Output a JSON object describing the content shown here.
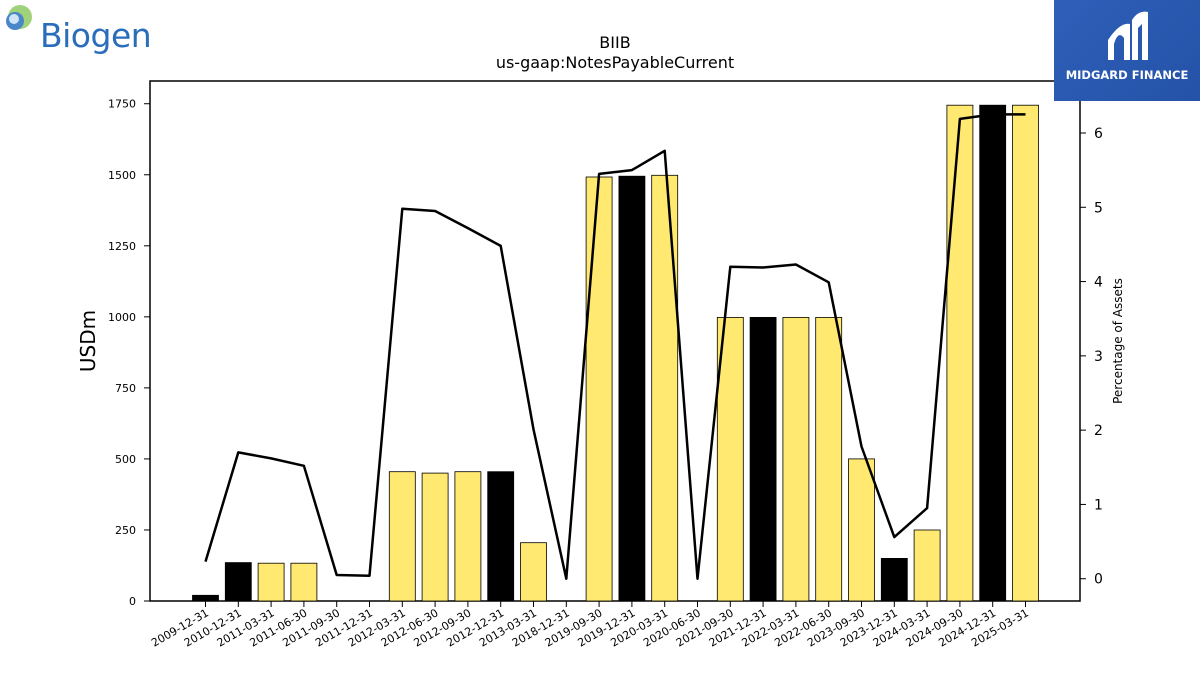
{
  "brand": {
    "left_logo": "Biogen",
    "right_logo": "MIDGARD FINANCE"
  },
  "chart_data": {
    "type": "bar",
    "title": "BIIB",
    "subtitle": "us-gaap:NotesPayableCurrent",
    "ylabel": "USDm",
    "y2label": "Percentage of Assets",
    "ylim": [
      0,
      1830
    ],
    "y2lim": [
      -0.3,
      6.7
    ],
    "yticks": [
      0,
      250,
      500,
      750,
      1000,
      1250,
      1500,
      1750
    ],
    "y2ticks": [
      0,
      1,
      2,
      3,
      4,
      5,
      6
    ],
    "categories": [
      "2009-12-31",
      "2010-12-31",
      "2011-03-31",
      "2011-06-30",
      "2011-09-30",
      "2011-12-31",
      "2012-03-31",
      "2012-06-30",
      "2012-09-30",
      "2012-12-31",
      "2013-03-31",
      "2018-12-31",
      "2019-09-30",
      "2019-12-31",
      "2020-03-31",
      "2020-06-30",
      "2021-09-30",
      "2021-12-31",
      "2022-03-31",
      "2022-06-30",
      "2023-09-30",
      "2023-12-31",
      "2024-03-31",
      "2024-09-30",
      "2024-12-31",
      "2025-03-31"
    ],
    "series": [
      {
        "values": [
          20,
          135,
          133,
          133,
          0,
          0,
          455,
          450,
          455,
          455,
          205,
          0,
          1492,
          1495,
          1498,
          0,
          998,
          998,
          998,
          998,
          500,
          150,
          250,
          1745,
          1745,
          1745
        ],
        "bar_colors": [
          "#000000",
          "#000000",
          "#ffe970",
          "#ffe970",
          "#ffe970",
          "#ffe970",
          "#ffe970",
          "#ffe970",
          "#ffe970",
          "#000000",
          "#ffe970",
          "#ffe970",
          "#ffe970",
          "#000000",
          "#ffe970",
          "#ffe970",
          "#ffe970",
          "#000000",
          "#ffe970",
          "#ffe970",
          "#ffe970",
          "#000000",
          "#ffe970",
          "#ffe970",
          "#000000",
          "#ffe970"
        ]
      },
      {
        "axis": "right",
        "type": "line",
        "values": [
          0.23,
          1.7,
          1.62,
          1.52,
          0.05,
          0.04,
          4.98,
          4.95,
          4.72,
          4.48,
          2.01,
          0.0,
          5.45,
          5.5,
          5.76,
          0.0,
          4.2,
          4.19,
          4.23,
          3.99,
          1.78,
          0.56,
          0.95,
          6.19,
          6.25,
          6.25
        ]
      }
    ],
    "grid": false,
    "legend": "none"
  }
}
